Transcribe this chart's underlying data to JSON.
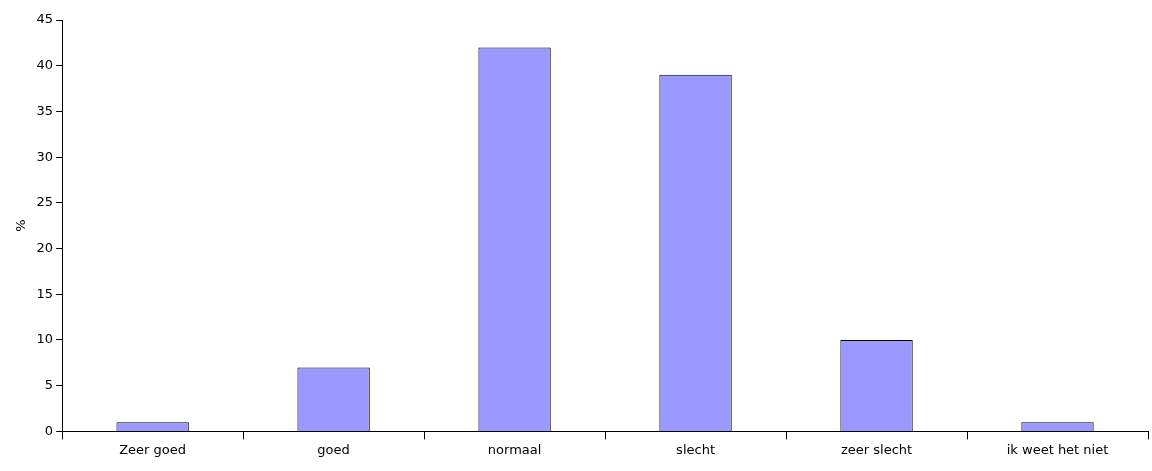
{
  "chart_data": {
    "type": "bar",
    "ylabel": "%",
    "categories": [
      "Zeer goed",
      "goed",
      "normaal",
      "slecht",
      "zeer slecht",
      "ik weet het niet"
    ],
    "values": [
      1,
      7,
      42,
      39,
      10,
      1
    ],
    "color": "#9999ff",
    "ylim": [
      0,
      45
    ],
    "yticks": [
      0,
      5,
      10,
      15,
      20,
      25,
      30,
      35,
      40,
      45
    ],
    "grid": false,
    "legend": false
  }
}
